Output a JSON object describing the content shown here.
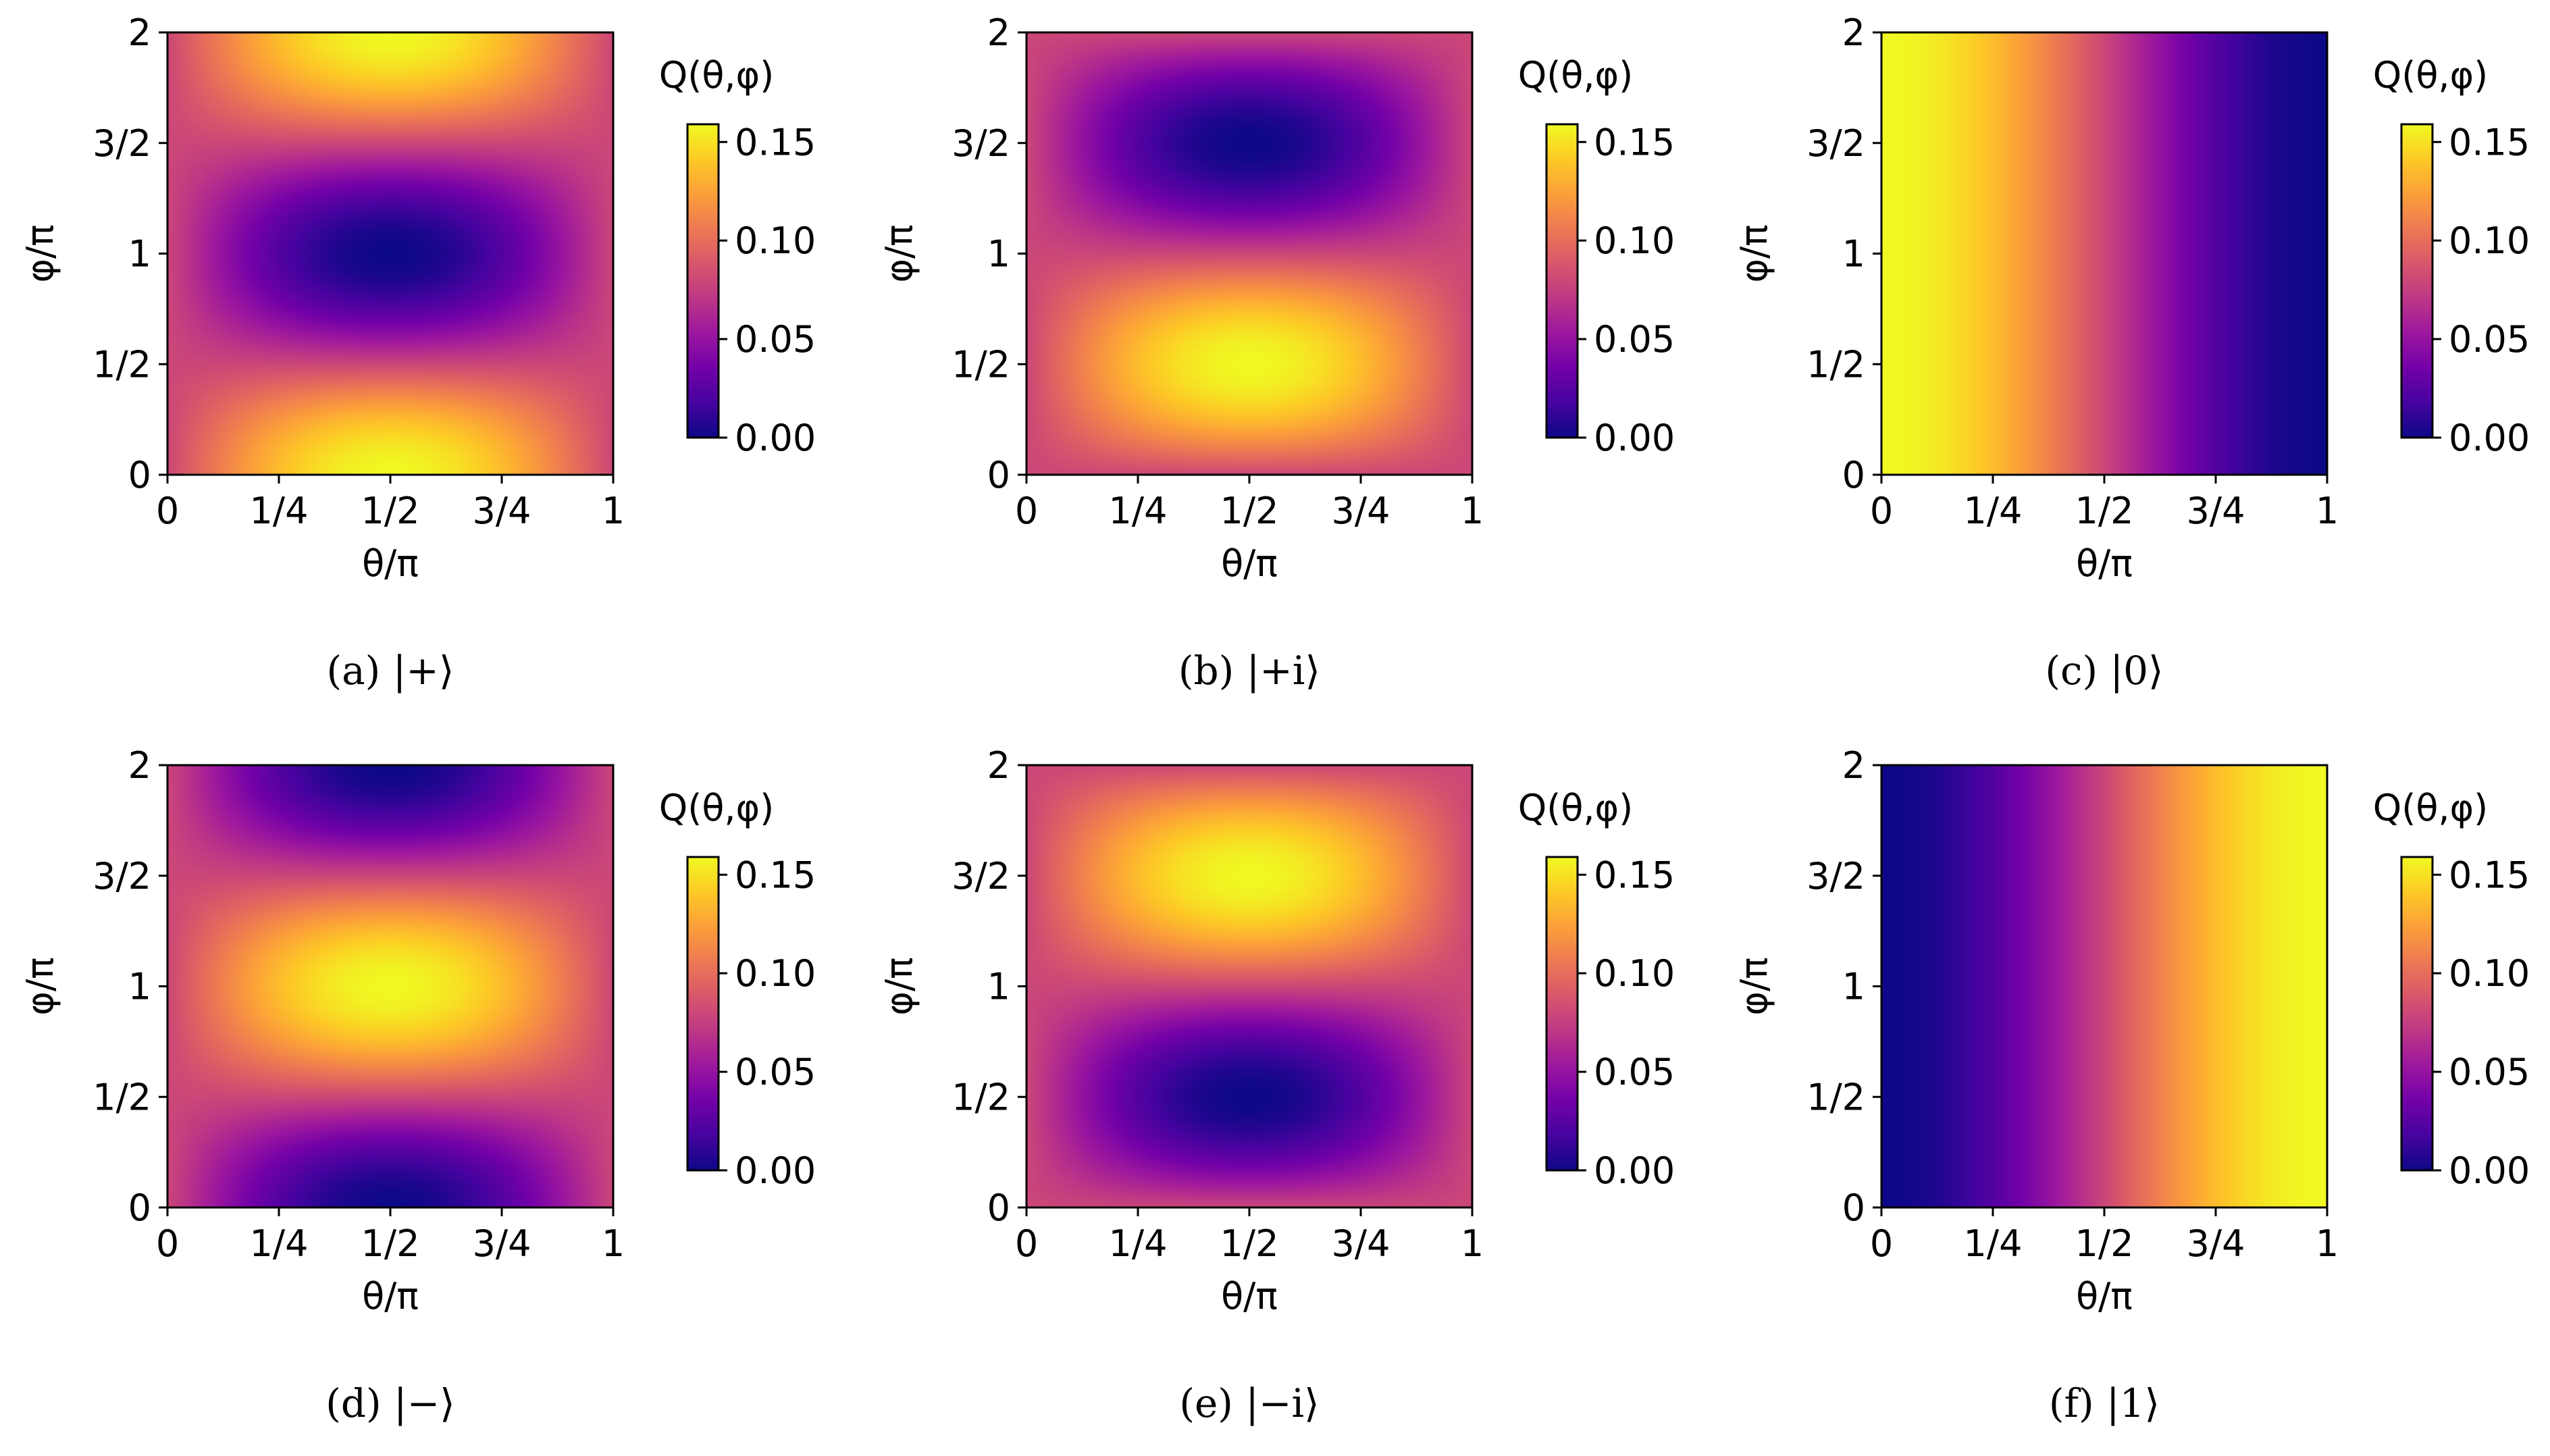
{
  "figure": {
    "colormap": "plasma",
    "colormap_stops": [
      "#0d0887",
      "#46039f",
      "#7201a8",
      "#9c179e",
      "#bd3786",
      "#d8576b",
      "#ed7953",
      "#fb9f3a",
      "#fdca26",
      "#f0f921"
    ],
    "tick_color": "#000000"
  },
  "chart_data": [
    {
      "type": "heatmap",
      "panel": "a",
      "state": "+",
      "caption": "(a) |+⟩",
      "xlabel": "θ/π",
      "ylabel": "φ/π",
      "xlim": [
        0,
        1
      ],
      "ylim": [
        0,
        2
      ],
      "xticks": [
        0,
        0.25,
        0.5,
        0.75,
        1
      ],
      "xtick_labels": [
        "0",
        "1/4",
        "1/2",
        "3/4",
        "1"
      ],
      "yticks": [
        0,
        0.5,
        1,
        1.5,
        2
      ],
      "ytick_labels": [
        "0",
        "1/2",
        "1",
        "3/2",
        "2"
      ],
      "colorbar": {
        "label": "Q(θ,φ)",
        "range": [
          0,
          0.159
        ],
        "ticks": [
          0,
          0.05,
          0.1,
          0.15
        ],
        "tick_labels": [
          "0.00",
          "0.05",
          "0.10",
          "0.15"
        ]
      }
    },
    {
      "type": "heatmap",
      "panel": "b",
      "state": "+i",
      "caption": "(b) |+i⟩",
      "xlabel": "θ/π",
      "ylabel": "φ/π",
      "xlim": [
        0,
        1
      ],
      "ylim": [
        0,
        2
      ],
      "xticks": [
        0,
        0.25,
        0.5,
        0.75,
        1
      ],
      "xtick_labels": [
        "0",
        "1/4",
        "1/2",
        "3/4",
        "1"
      ],
      "yticks": [
        0,
        0.5,
        1,
        1.5,
        2
      ],
      "ytick_labels": [
        "0",
        "1/2",
        "1",
        "3/2",
        "2"
      ],
      "colorbar": {
        "label": "Q(θ,φ)",
        "range": [
          0,
          0.159
        ],
        "ticks": [
          0,
          0.05,
          0.1,
          0.15
        ],
        "tick_labels": [
          "0.00",
          "0.05",
          "0.10",
          "0.15"
        ]
      }
    },
    {
      "type": "heatmap",
      "panel": "c",
      "state": "0",
      "caption": "(c) |0⟩",
      "xlabel": "θ/π",
      "ylabel": "φ/π",
      "xlim": [
        0,
        1
      ],
      "ylim": [
        0,
        2
      ],
      "xticks": [
        0,
        0.25,
        0.5,
        0.75,
        1
      ],
      "xtick_labels": [
        "0",
        "1/4",
        "1/2",
        "3/4",
        "1"
      ],
      "yticks": [
        0,
        0.5,
        1,
        1.5,
        2
      ],
      "ytick_labels": [
        "0",
        "1/2",
        "1",
        "3/2",
        "2"
      ],
      "colorbar": {
        "label": "Q(θ,φ)",
        "range": [
          0,
          0.159
        ],
        "ticks": [
          0,
          0.05,
          0.1,
          0.15
        ],
        "tick_labels": [
          "0.00",
          "0.05",
          "0.10",
          "0.15"
        ]
      }
    },
    {
      "type": "heatmap",
      "panel": "d",
      "state": "-",
      "caption": "(d) |−⟩",
      "xlabel": "θ/π",
      "ylabel": "φ/π",
      "xlim": [
        0,
        1
      ],
      "ylim": [
        0,
        2
      ],
      "xticks": [
        0,
        0.25,
        0.5,
        0.75,
        1
      ],
      "xtick_labels": [
        "0",
        "1/4",
        "1/2",
        "3/4",
        "1"
      ],
      "yticks": [
        0,
        0.5,
        1,
        1.5,
        2
      ],
      "ytick_labels": [
        "0",
        "1/2",
        "1",
        "3/2",
        "2"
      ],
      "colorbar": {
        "label": "Q(θ,φ)",
        "range": [
          0,
          0.159
        ],
        "ticks": [
          0,
          0.05,
          0.1,
          0.15
        ],
        "tick_labels": [
          "0.00",
          "0.05",
          "0.10",
          "0.15"
        ]
      }
    },
    {
      "type": "heatmap",
      "panel": "e",
      "state": "-i",
      "caption": "(e) |−i⟩",
      "xlabel": "θ/π",
      "ylabel": "φ/π",
      "xlim": [
        0,
        1
      ],
      "ylim": [
        0,
        2
      ],
      "xticks": [
        0,
        0.25,
        0.5,
        0.75,
        1
      ],
      "xtick_labels": [
        "0",
        "1/4",
        "1/2",
        "3/4",
        "1"
      ],
      "yticks": [
        0,
        0.5,
        1,
        1.5,
        2
      ],
      "ytick_labels": [
        "0",
        "1/2",
        "1",
        "3/2",
        "2"
      ],
      "colorbar": {
        "label": "Q(θ,φ)",
        "range": [
          0,
          0.159
        ],
        "ticks": [
          0,
          0.05,
          0.1,
          0.15
        ],
        "tick_labels": [
          "0.00",
          "0.05",
          "0.10",
          "0.15"
        ]
      }
    },
    {
      "type": "heatmap",
      "panel": "f",
      "state": "1",
      "caption": "(f) |1⟩",
      "xlabel": "θ/π",
      "ylabel": "φ/π",
      "xlim": [
        0,
        1
      ],
      "ylim": [
        0,
        2
      ],
      "xticks": [
        0,
        0.25,
        0.5,
        0.75,
        1
      ],
      "xtick_labels": [
        "0",
        "1/4",
        "1/2",
        "3/4",
        "1"
      ],
      "yticks": [
        0,
        0.5,
        1,
        1.5,
        2
      ],
      "ytick_labels": [
        "0",
        "1/2",
        "1",
        "3/2",
        "2"
      ],
      "colorbar": {
        "label": "Q(θ,φ)",
        "range": [
          0,
          0.159
        ],
        "ticks": [
          0,
          0.05,
          0.1,
          0.15
        ],
        "tick_labels": [
          "0.00",
          "0.05",
          "0.10",
          "0.15"
        ]
      }
    }
  ]
}
